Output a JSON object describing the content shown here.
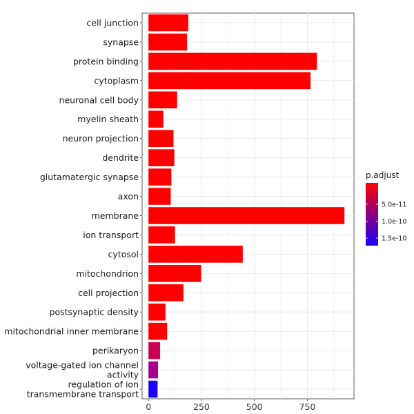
{
  "chart_data": {
    "type": "bar",
    "orientation": "horizontal",
    "title": "",
    "xlabel": "",
    "ylabel": "",
    "xlim": [
      -30,
      970
    ],
    "x_ticks": [
      0,
      250,
      500,
      750
    ],
    "x_tick_labels": [
      "0",
      "250",
      "500",
      "750"
    ],
    "grid": true,
    "categories": [
      "cell junction",
      "synapse",
      "protein binding",
      "cytoplasm",
      "neuronal cell body",
      "myelin sheath",
      "neuron projection",
      "dendrite",
      "glutamatergic synapse",
      "axon",
      "membrane",
      "ion transport",
      "cytosol",
      "mitochondrion",
      "cell projection",
      "postsynaptic density",
      "mitochondrial inner membrane",
      "perikaryon",
      "voltage-gated ion channel activity",
      "regulation of ion transmembrane transport"
    ],
    "category_label_lines": [
      [
        "cell junction"
      ],
      [
        "synapse"
      ],
      [
        "protein binding"
      ],
      [
        "cytoplasm"
      ],
      [
        "neuronal cell body"
      ],
      [
        "myelin sheath"
      ],
      [
        "neuron projection"
      ],
      [
        "dendrite"
      ],
      [
        "glutamatergic synapse"
      ],
      [
        "axon"
      ],
      [
        "membrane"
      ],
      [
        "ion transport"
      ],
      [
        "cytosol"
      ],
      [
        "mitochondrion"
      ],
      [
        "cell projection"
      ],
      [
        "postsynaptic density"
      ],
      [
        "mitochondrial inner membrane"
      ],
      [
        "perikaryon"
      ],
      [
        "voltage-gated ion channel",
        "activity"
      ],
      [
        "regulation of ion",
        "transmembrane transport"
      ]
    ],
    "values": [
      188,
      182,
      795,
      765,
      135,
      70,
      118,
      122,
      108,
      105,
      925,
      125,
      445,
      248,
      165,
      80,
      88,
      55,
      45,
      43
    ],
    "bar_colors": [
      "#ff0000",
      "#ff0000",
      "#ff0000",
      "#ff0000",
      "#ff0000",
      "#ff0000",
      "#ff0000",
      "#ff0000",
      "#ff0000",
      "#ff0000",
      "#ff0000",
      "#ff0000",
      "#ff0000",
      "#ff0000",
      "#ff0000",
      "#ff0000",
      "#ff0000",
      "#cc0050",
      "#a6008c",
      "#1f00f5"
    ],
    "legend": {
      "title": "p.adjust",
      "placement": "right",
      "gradient_top": "#ff0000",
      "gradient_bottom": "#1a00ff",
      "ticks": [
        "5.0e-11",
        "1.0e-10",
        "1.5e-10"
      ],
      "tick_fractions": [
        0.34,
        0.61,
        0.88
      ]
    }
  }
}
